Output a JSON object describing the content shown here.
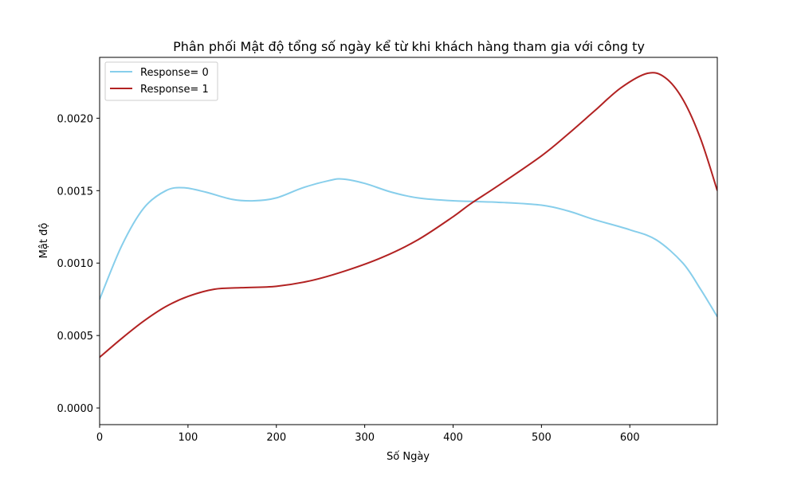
{
  "chart_data": {
    "type": "line",
    "title": "Phân phối Mật độ tổng số ngày kể từ khi khách hàng tham gia với công ty",
    "xlabel": "Số Ngày",
    "ylabel": "Mật độ",
    "xlim": [
      0,
      699
    ],
    "ylim": [
      -0.000115,
      0.00242
    ],
    "xticks": [
      0,
      100,
      200,
      300,
      400,
      500,
      600
    ],
    "xtick_labels": [
      "0",
      "100",
      "200",
      "300",
      "400",
      "500",
      "600"
    ],
    "yticks": [
      0,
      0.0005,
      0.001,
      0.0015,
      0.002
    ],
    "ytick_labels": [
      "0.0000",
      "0.0005",
      "0.0010",
      "0.0015",
      "0.0020"
    ],
    "grid": false,
    "legend_position": "upper-left",
    "series": [
      {
        "name": "Response= 0",
        "color": "#87ceeb",
        "x": [
          0,
          25,
          50,
          75,
          95,
          120,
          150,
          175,
          200,
          230,
          260,
          275,
          300,
          330,
          360,
          400,
          450,
          500,
          530,
          560,
          600,
          630,
          660,
          680,
          699
        ],
        "y": [
          0.00075,
          0.00112,
          0.00138,
          0.0015,
          0.00152,
          0.00149,
          0.00144,
          0.00143,
          0.00145,
          0.00152,
          0.00157,
          0.00158,
          0.00155,
          0.00149,
          0.00145,
          0.00143,
          0.00142,
          0.0014,
          0.00136,
          0.0013,
          0.00123,
          0.00116,
          0.001,
          0.00082,
          0.00063
        ]
      },
      {
        "name": "Response= 1",
        "color": "#b22222",
        "x": [
          0,
          25,
          50,
          75,
          100,
          130,
          160,
          200,
          240,
          280,
          320,
          360,
          400,
          420,
          450,
          500,
          530,
          560,
          590,
          620,
          640,
          660,
          680,
          699
        ],
        "y": [
          0.00035,
          0.00048,
          0.0006,
          0.0007,
          0.00077,
          0.00082,
          0.00083,
          0.00084,
          0.00088,
          0.00095,
          0.00104,
          0.00116,
          0.00132,
          0.00141,
          0.00153,
          0.00174,
          0.00189,
          0.00205,
          0.00221,
          0.00231,
          0.00228,
          0.00213,
          0.00186,
          0.0015
        ]
      }
    ]
  }
}
